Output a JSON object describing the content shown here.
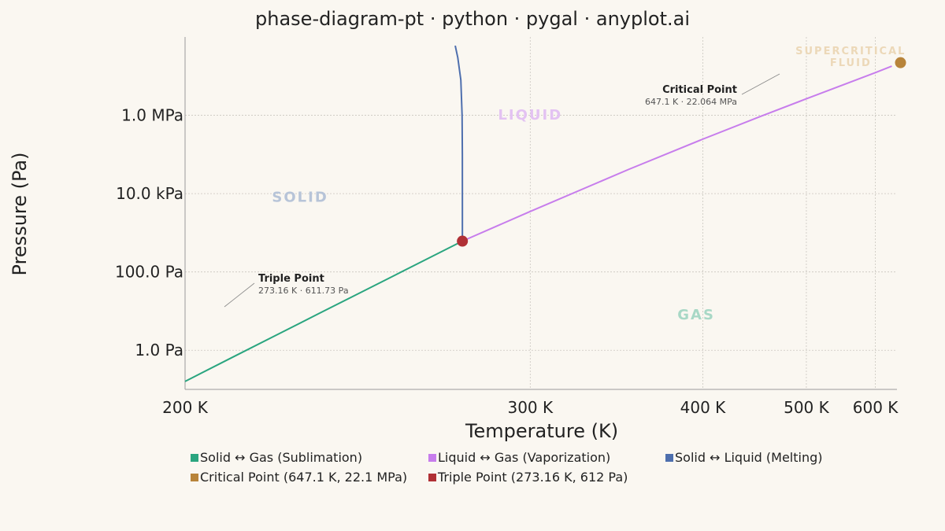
{
  "chart_data": {
    "type": "line",
    "title": "phase-diagram-pt · python · pygal · anyplot.ai",
    "xlabel": "Temperature (K)",
    "ylabel": "Pressure (Pa)",
    "x_scale": "reciprocal",
    "y_scale": "log",
    "xlim": [
      200,
      640
    ],
    "ylim": [
      0.1,
      100000000
    ],
    "x_ticks": [
      {
        "value": 200,
        "label": "200 K"
      },
      {
        "value": 300,
        "label": "300 K"
      },
      {
        "value": 400,
        "label": "400 K"
      },
      {
        "value": 500,
        "label": "500 K"
      },
      {
        "value": 600,
        "label": "600 K"
      }
    ],
    "y_ticks": [
      {
        "value": 1,
        "label": "1.0 Pa"
      },
      {
        "value": 100,
        "label": "100.0 Pa"
      },
      {
        "value": 10000,
        "label": "10.0 kPa"
      },
      {
        "value": 1000000,
        "label": "1.0 MPa"
      }
    ],
    "grid": true,
    "series": [
      {
        "name": "Solid ↔ Gas (Sublimation)",
        "color": "#2aa57f",
        "points": [
          [
            200,
            0.16
          ],
          [
            210,
            0.7
          ],
          [
            220,
            2.65
          ],
          [
            230,
            8.97
          ],
          [
            240,
            27.3
          ],
          [
            250,
            76.0
          ],
          [
            260,
            196
          ],
          [
            273.16,
            611.73
          ]
        ]
      },
      {
        "name": "Liquid ↔ Gas (Vaporization)",
        "color": "#c77dec",
        "points": [
          [
            273.16,
            611.73
          ],
          [
            300,
            3500
          ],
          [
            350,
            41700
          ],
          [
            400,
            246000
          ],
          [
            450,
            932000
          ],
          [
            500,
            2640000
          ],
          [
            550,
            6100000
          ],
          [
            600,
            12300000
          ],
          [
            630,
            18000000
          ]
        ]
      },
      {
        "name": "Solid ↔ Liquid (Melting)",
        "color": "#4e6fae",
        "points": [
          [
            273.16,
            611.73
          ],
          [
            273.16,
            5000
          ],
          [
            273.15,
            100000
          ],
          [
            273.05,
            1000000
          ],
          [
            272.6,
            8000000
          ],
          [
            271.5,
            30000000
          ],
          [
            270.6,
            60000000
          ]
        ]
      },
      {
        "name": "Critical Point (647.1 K, 22.1 MPa)",
        "color": "#b8843a",
        "marker": true,
        "points": [
          [
            647.1,
            22064000
          ]
        ]
      },
      {
        "name": "Triple Point (273.16 K, 612 Pa)",
        "color": "#b03035",
        "marker": true,
        "points": [
          [
            273.16,
            611.73
          ]
        ]
      }
    ],
    "regions": [
      {
        "label": "SOLID",
        "color": "#b7c4d8",
        "x": 225,
        "y": 8000
      },
      {
        "label": "LIQUID",
        "color": "#e3c2f2",
        "x": 300,
        "y": 1000000
      },
      {
        "label": "GAS",
        "color": "#a8d8c6",
        "x": 395,
        "y": 8
      },
      {
        "label": "SUPERCRITICAL",
        "label2": "FLUID",
        "color": "#ecd8b8",
        "x": 560,
        "y": 30000000
      }
    ],
    "annotations": [
      {
        "title": "Critical Point",
        "detail": "647.1 K · 22.064 MPa"
      },
      {
        "title": "Triple Point",
        "detail": "273.16 K · 611.73 Pa"
      }
    ],
    "legend_position": "bottom"
  }
}
